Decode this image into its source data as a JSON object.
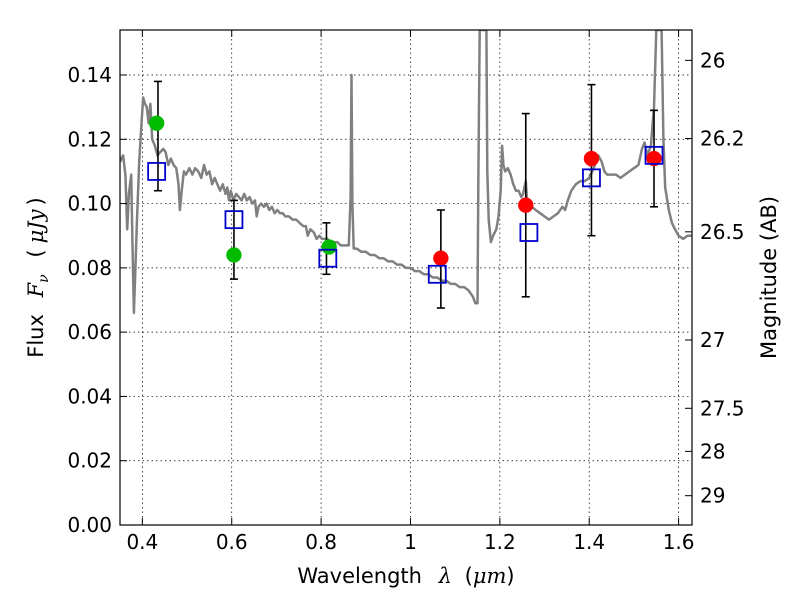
{
  "chart_data": {
    "type": "scatter",
    "xlabel": {
      "text": "Wavelength",
      "symbol": "λ",
      "unit_open": "(",
      "unit": "μm",
      "unit_close": ")"
    },
    "ylabel": {
      "text": "Flux",
      "symbol": "F",
      "subscript": "ν",
      "unit_open": "(",
      "unit": "μJy",
      "unit_close": ")"
    },
    "y2label": "Magnitude (AB)",
    "xlim": [
      0.35,
      1.63
    ],
    "ylim": [
      0.0,
      0.154
    ],
    "grid": true,
    "x_ticks": [
      0.4,
      0.6,
      0.8,
      1.0,
      1.2,
      1.4,
      1.6
    ],
    "x_tick_labels": [
      "0.4",
      "0.6",
      "0.8",
      "1",
      "1.2",
      "1.4",
      "1.6"
    ],
    "y_ticks": [
      0.0,
      0.02,
      0.04,
      0.06,
      0.08,
      0.1,
      0.12,
      0.14
    ],
    "y_tick_labels": [
      "0.00",
      "0.02",
      "0.04",
      "0.06",
      "0.08",
      "0.10",
      "0.12",
      "0.14"
    ],
    "mag_ticks": [
      {
        "label": "26",
        "mag": 26.0
      },
      {
        "label": "26.2",
        "mag": 26.2
      },
      {
        "label": "26.5",
        "mag": 26.5
      },
      {
        "label": "27",
        "mag": 27.0
      },
      {
        "label": "27.5",
        "mag": 27.5
      },
      {
        "label": "28",
        "mag": 28.0
      },
      {
        "label": "29",
        "mag": 29.0
      }
    ],
    "series": [
      {
        "kind": "line",
        "color": "#808080",
        "points": [
          [
            0.35,
            0.113
          ],
          [
            0.357,
            0.115
          ],
          [
            0.362,
            0.109
          ],
          [
            0.366,
            0.092
          ],
          [
            0.37,
            0.103
          ],
          [
            0.375,
            0.109
          ],
          [
            0.378,
            0.087
          ],
          [
            0.381,
            0.066
          ],
          [
            0.384,
            0.078
          ],
          [
            0.388,
            0.095
          ],
          [
            0.393,
            0.113
          ],
          [
            0.398,
            0.125
          ],
          [
            0.402,
            0.133
          ],
          [
            0.406,
            0.131
          ],
          [
            0.41,
            0.13
          ],
          [
            0.414,
            0.125
          ],
          [
            0.418,
            0.131
          ],
          [
            0.422,
            0.12
          ],
          [
            0.428,
            0.118
          ],
          [
            0.434,
            0.115
          ],
          [
            0.44,
            0.116
          ],
          [
            0.447,
            0.117
          ],
          [
            0.452,
            0.116
          ],
          [
            0.458,
            0.112
          ],
          [
            0.464,
            0.114
          ],
          [
            0.47,
            0.112
          ],
          [
            0.476,
            0.111
          ],
          [
            0.481,
            0.106
          ],
          [
            0.484,
            0.098
          ],
          [
            0.488,
            0.104
          ],
          [
            0.493,
            0.11
          ],
          [
            0.498,
            0.109
          ],
          [
            0.505,
            0.111
          ],
          [
            0.512,
            0.109
          ],
          [
            0.518,
            0.111
          ],
          [
            0.525,
            0.11
          ],
          [
            0.532,
            0.108
          ],
          [
            0.538,
            0.112
          ],
          [
            0.544,
            0.109
          ],
          [
            0.55,
            0.11
          ],
          [
            0.556,
            0.106
          ],
          [
            0.562,
            0.108
          ],
          [
            0.568,
            0.106
          ],
          [
            0.574,
            0.104
          ],
          [
            0.58,
            0.106
          ],
          [
            0.586,
            0.103
          ],
          [
            0.59,
            0.105
          ],
          [
            0.594,
            0.101
          ],
          [
            0.598,
            0.104
          ],
          [
            0.604,
            0.101
          ],
          [
            0.61,
            0.103
          ],
          [
            0.616,
            0.102
          ],
          [
            0.622,
            0.101
          ],
          [
            0.628,
            0.103
          ],
          [
            0.634,
            0.101
          ],
          [
            0.64,
            0.102
          ],
          [
            0.646,
            0.1
          ],
          [
            0.652,
            0.101
          ],
          [
            0.656,
            0.096
          ],
          [
            0.66,
            0.099
          ],
          [
            0.666,
            0.1
          ],
          [
            0.672,
            0.099
          ],
          [
            0.678,
            0.1
          ],
          [
            0.684,
            0.098
          ],
          [
            0.69,
            0.099
          ],
          [
            0.696,
            0.097
          ],
          [
            0.702,
            0.098
          ],
          [
            0.708,
            0.097
          ],
          [
            0.714,
            0.097
          ],
          [
            0.72,
            0.096
          ],
          [
            0.728,
            0.096
          ],
          [
            0.736,
            0.095
          ],
          [
            0.744,
            0.095
          ],
          [
            0.752,
            0.094
          ],
          [
            0.76,
            0.093
          ],
          [
            0.766,
            0.093
          ],
          [
            0.77,
            0.09
          ],
          [
            0.776,
            0.092
          ],
          [
            0.784,
            0.091
          ],
          [
            0.79,
            0.089
          ],
          [
            0.796,
            0.09
          ],
          [
            0.802,
            0.089
          ],
          [
            0.808,
            0.089
          ],
          [
            0.814,
            0.089
          ],
          [
            0.82,
            0.088
          ],
          [
            0.828,
            0.088
          ],
          [
            0.836,
            0.088
          ],
          [
            0.844,
            0.087
          ],
          [
            0.852,
            0.087
          ],
          [
            0.858,
            0.087
          ],
          [
            0.862,
            0.087
          ],
          [
            0.866,
            0.102
          ],
          [
            0.868,
            0.14
          ],
          [
            0.87,
            0.1
          ],
          [
            0.873,
            0.086
          ],
          [
            0.88,
            0.086
          ],
          [
            0.89,
            0.085
          ],
          [
            0.9,
            0.085
          ],
          [
            0.91,
            0.084
          ],
          [
            0.92,
            0.084
          ],
          [
            0.93,
            0.083
          ],
          [
            0.94,
            0.083
          ],
          [
            0.95,
            0.082
          ],
          [
            0.96,
            0.082
          ],
          [
            0.97,
            0.081
          ],
          [
            0.98,
            0.081
          ],
          [
            0.99,
            0.08
          ],
          [
            1.0,
            0.08
          ],
          [
            1.01,
            0.079
          ],
          [
            1.02,
            0.079
          ],
          [
            1.03,
            0.078
          ],
          [
            1.04,
            0.078
          ],
          [
            1.05,
            0.077
          ],
          [
            1.06,
            0.077
          ],
          [
            1.07,
            0.076
          ],
          [
            1.08,
            0.076
          ],
          [
            1.09,
            0.075
          ],
          [
            1.1,
            0.075
          ],
          [
            1.11,
            0.074
          ],
          [
            1.12,
            0.074
          ],
          [
            1.13,
            0.073
          ],
          [
            1.14,
            0.071
          ],
          [
            1.145,
            0.069
          ],
          [
            1.15,
            0.069
          ],
          [
            1.152,
            0.11
          ],
          [
            1.155,
            0.154
          ],
          [
            1.17,
            0.154
          ],
          [
            1.172,
            0.11
          ],
          [
            1.175,
            0.095
          ],
          [
            1.18,
            0.088
          ],
          [
            1.185,
            0.09
          ],
          [
            1.192,
            0.092
          ],
          [
            1.197,
            0.096
          ],
          [
            1.202,
            0.104
          ],
          [
            1.205,
            0.118
          ],
          [
            1.208,
            0.112
          ],
          [
            1.212,
            0.11
          ],
          [
            1.218,
            0.111
          ],
          [
            1.224,
            0.109
          ],
          [
            1.23,
            0.106
          ],
          [
            1.236,
            0.104
          ],
          [
            1.242,
            0.104
          ],
          [
            1.248,
            0.102
          ],
          [
            1.252,
            0.103
          ],
          [
            1.258,
            0.107
          ],
          [
            1.262,
            0.098
          ],
          [
            1.266,
            0.1
          ],
          [
            1.272,
            0.099
          ],
          [
            1.28,
            0.098
          ],
          [
            1.29,
            0.097
          ],
          [
            1.3,
            0.096
          ],
          [
            1.31,
            0.095
          ],
          [
            1.32,
            0.096
          ],
          [
            1.33,
            0.097
          ],
          [
            1.34,
            0.099
          ],
          [
            1.346,
            0.098
          ],
          [
            1.352,
            0.101
          ],
          [
            1.36,
            0.104
          ],
          [
            1.37,
            0.106
          ],
          [
            1.38,
            0.107
          ],
          [
            1.39,
            0.107
          ],
          [
            1.4,
            0.108
          ],
          [
            1.41,
            0.111
          ],
          [
            1.42,
            0.115
          ],
          [
            1.428,
            0.113
          ],
          [
            1.434,
            0.11
          ],
          [
            1.44,
            0.109
          ],
          [
            1.45,
            0.109
          ],
          [
            1.46,
            0.109
          ],
          [
            1.47,
            0.108
          ],
          [
            1.48,
            0.109
          ],
          [
            1.49,
            0.11
          ],
          [
            1.5,
            0.111
          ],
          [
            1.51,
            0.112
          ],
          [
            1.518,
            0.117
          ],
          [
            1.524,
            0.119
          ],
          [
            1.53,
            0.115
          ],
          [
            1.538,
            0.118
          ],
          [
            1.545,
            0.13
          ],
          [
            1.55,
            0.154
          ],
          [
            1.562,
            0.154
          ],
          [
            1.566,
            0.12
          ],
          [
            1.57,
            0.105
          ],
          [
            1.578,
            0.098
          ],
          [
            1.585,
            0.094
          ],
          [
            1.592,
            0.092
          ],
          [
            1.6,
            0.09
          ],
          [
            1.61,
            0.089
          ],
          [
            1.62,
            0.09
          ],
          [
            1.63,
            0.09
          ]
        ]
      },
      {
        "kind": "errorbar",
        "color": "#000000",
        "points": [
          {
            "x": 0.435,
            "y": 0.118,
            "ylo": 0.104,
            "yhi": 0.138
          },
          {
            "x": 0.605,
            "y": 0.084,
            "ylo": 0.0765,
            "yhi": 0.101
          },
          {
            "x": 0.812,
            "y": 0.086,
            "ylo": 0.078,
            "yhi": 0.094
          },
          {
            "x": 1.068,
            "y": 0.083,
            "ylo": 0.0675,
            "yhi": 0.098
          },
          {
            "x": 1.258,
            "y": 0.0995,
            "ylo": 0.071,
            "yhi": 0.128
          },
          {
            "x": 1.405,
            "y": 0.114,
            "ylo": 0.09,
            "yhi": 0.137
          },
          {
            "x": 1.545,
            "y": 0.114,
            "ylo": 0.099,
            "yhi": 0.129
          }
        ]
      },
      {
        "kind": "filled-circle",
        "color": "#00bb00",
        "points": [
          {
            "x": 0.432,
            "y": 0.125
          },
          {
            "x": 0.605,
            "y": 0.084
          },
          {
            "x": 0.818,
            "y": 0.0865
          }
        ]
      },
      {
        "kind": "filled-circle",
        "color": "#ff0000",
        "points": [
          {
            "x": 1.068,
            "y": 0.083
          },
          {
            "x": 1.258,
            "y": 0.0995
          },
          {
            "x": 1.405,
            "y": 0.114
          },
          {
            "x": 1.545,
            "y": 0.114
          }
        ]
      },
      {
        "kind": "open-square",
        "color": "#0000cc",
        "points": [
          {
            "x": 0.432,
            "y": 0.11
          },
          {
            "x": 0.605,
            "y": 0.095
          },
          {
            "x": 0.815,
            "y": 0.083
          },
          {
            "x": 1.06,
            "y": 0.078
          },
          {
            "x": 1.265,
            "y": 0.091
          },
          {
            "x": 1.405,
            "y": 0.108
          },
          {
            "x": 1.545,
            "y": 0.115
          }
        ]
      }
    ]
  }
}
